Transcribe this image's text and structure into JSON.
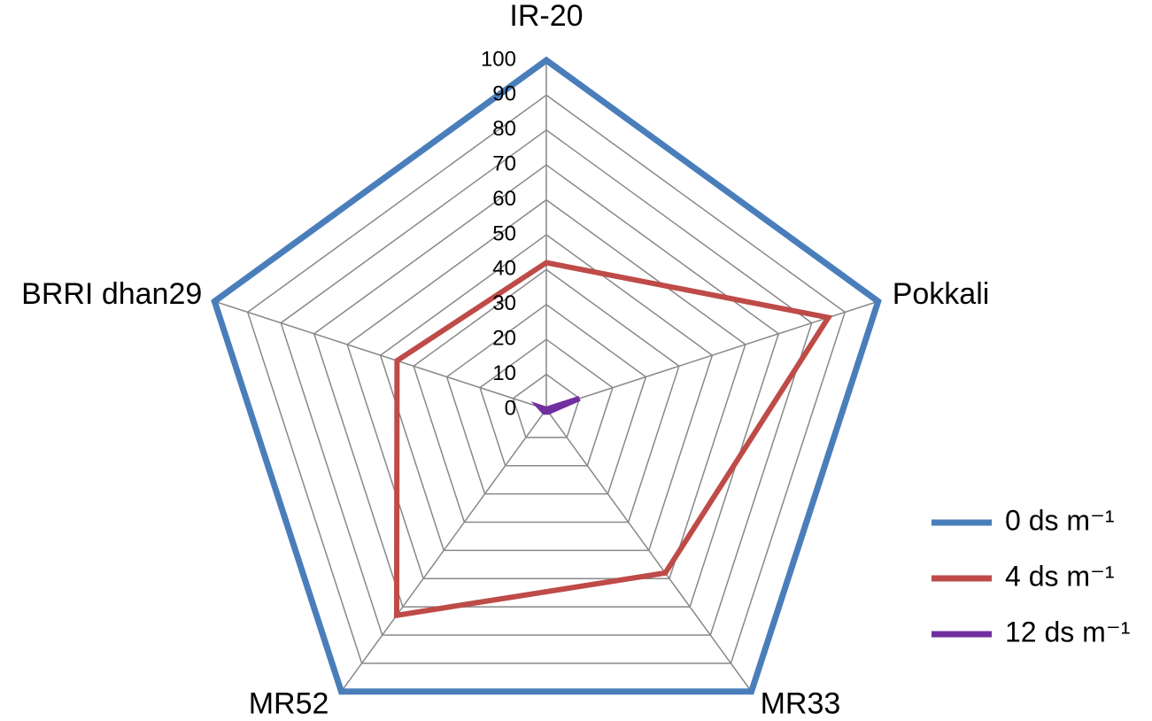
{
  "chart_data": {
    "type": "radar",
    "categories": [
      "IR-20",
      "Pokkali",
      "MR33",
      "MR52",
      "BRRI dhan29"
    ],
    "series": [
      {
        "name": "0 ds m⁻¹",
        "color": "#4a7ebb",
        "values": [
          100,
          100,
          100,
          100,
          100
        ]
      },
      {
        "name": "4 ds m⁻¹",
        "color": "#be4b48",
        "values": [
          42,
          85,
          58,
          73,
          45
        ]
      },
      {
        "name": "12 ds m⁻¹",
        "color": "#7030a0",
        "values": [
          0,
          10,
          1,
          1,
          2
        ]
      }
    ],
    "ylim": [
      0,
      100
    ],
    "yticks": [
      0,
      10,
      20,
      30,
      40,
      50,
      60,
      70,
      80,
      90,
      100
    ],
    "grid": true,
    "legend": "right"
  }
}
